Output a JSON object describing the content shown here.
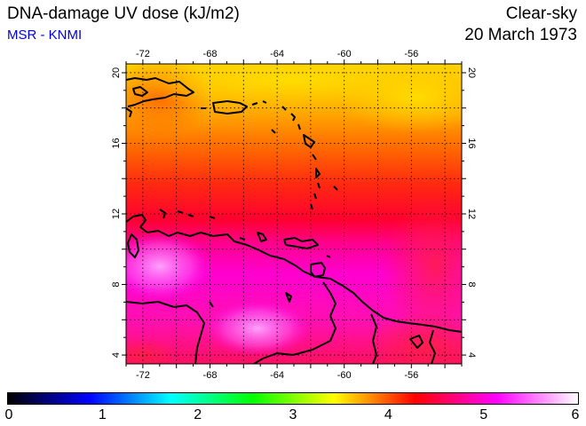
{
  "header": {
    "title": "DNA-damage UV dose (kJ/m2)",
    "subtitle": "MSR - KNMI",
    "condition": "Clear-sky",
    "date": "20 March 1973"
  },
  "map": {
    "lon_range": [
      -73,
      -53
    ],
    "lat_range": [
      3.5,
      20.5
    ],
    "lon_ticks": [
      "-72",
      "-68",
      "-64",
      "-60",
      "-56"
    ],
    "lat_ticks": [
      "4",
      "8",
      "12",
      "16",
      "20"
    ]
  },
  "colorbar": {
    "range": [
      0,
      6
    ],
    "tick_labels": [
      "0",
      "1",
      "2",
      "3",
      "4",
      "5",
      "6"
    ],
    "colors": [
      "#000000",
      "#0000ff",
      "#00ffff",
      "#00ff00",
      "#ffff00",
      "#ff0000",
      "#ff00ff",
      "#ffffff"
    ]
  },
  "colors": {
    "subtitle": "#0000e0",
    "coast": "#000000"
  }
}
